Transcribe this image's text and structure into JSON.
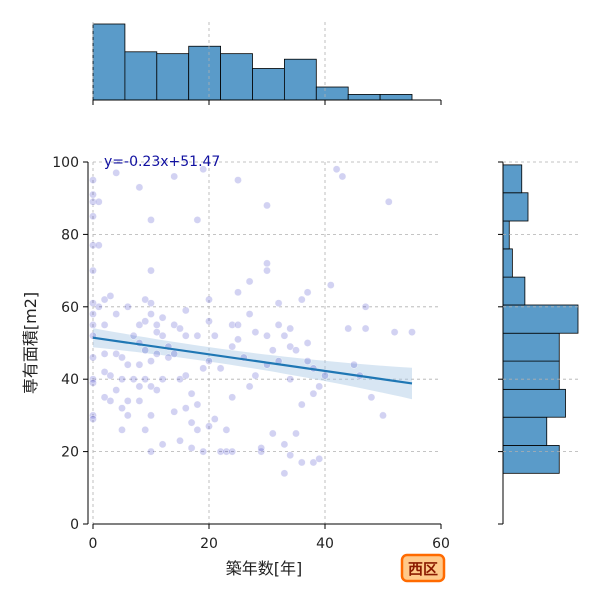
{
  "chart_data": {
    "type": "scatter",
    "xlabel": "築年数[年]",
    "ylabel": "専有面積[m2]",
    "xlim": [
      0,
      60
    ],
    "ylim": [
      0,
      100
    ],
    "xticks": [
      0,
      20,
      40,
      60
    ],
    "yticks": [
      0,
      20,
      40,
      60,
      80,
      100
    ],
    "grid": true,
    "annotation": "y=-0.23x+51.47",
    "badge": "西区",
    "regression": {
      "slope": -0.23,
      "intercept": 51.47,
      "x_range": [
        0,
        55
      ]
    },
    "points": [
      [
        0,
        95
      ],
      [
        0,
        91
      ],
      [
        0,
        89
      ],
      [
        1,
        89
      ],
      [
        0,
        85
      ],
      [
        0,
        77
      ],
      [
        1,
        77
      ],
      [
        0,
        70
      ],
      [
        0,
        61
      ],
      [
        0,
        58
      ],
      [
        0,
        55
      ],
      [
        0,
        52
      ],
      [
        0,
        46
      ],
      [
        0,
        40
      ],
      [
        0,
        39
      ],
      [
        0,
        30
      ],
      [
        0,
        29
      ],
      [
        1,
        60
      ],
      [
        2,
        62
      ],
      [
        2,
        55
      ],
      [
        2,
        47
      ],
      [
        2,
        42
      ],
      [
        2,
        35
      ],
      [
        3,
        41
      ],
      [
        3,
        34
      ],
      [
        3,
        63
      ],
      [
        4,
        97
      ],
      [
        4,
        58
      ],
      [
        4,
        47
      ],
      [
        4,
        37
      ],
      [
        5,
        46
      ],
      [
        5,
        40
      ],
      [
        5,
        32
      ],
      [
        5,
        26
      ],
      [
        6,
        60
      ],
      [
        6,
        44
      ],
      [
        6,
        34
      ],
      [
        6,
        30
      ],
      [
        7,
        52
      ],
      [
        7,
        40
      ],
      [
        8,
        93
      ],
      [
        8,
        55
      ],
      [
        8,
        50
      ],
      [
        8,
        38
      ],
      [
        8,
        34
      ],
      [
        8,
        44
      ],
      [
        9,
        62
      ],
      [
        9,
        56
      ],
      [
        9,
        48
      ],
      [
        9,
        40
      ],
      [
        9,
        26
      ],
      [
        10,
        84
      ],
      [
        10,
        70
      ],
      [
        10,
        61
      ],
      [
        10,
        58
      ],
      [
        10,
        45
      ],
      [
        10,
        38
      ],
      [
        10,
        30
      ],
      [
        10,
        20
      ],
      [
        11,
        55
      ],
      [
        11,
        53
      ],
      [
        11,
        47
      ],
      [
        11,
        37
      ],
      [
        12,
        57
      ],
      [
        12,
        52
      ],
      [
        12,
        40
      ],
      [
        12,
        22
      ],
      [
        13,
        49
      ],
      [
        13,
        46
      ],
      [
        14,
        96
      ],
      [
        14,
        55
      ],
      [
        14,
        47
      ],
      [
        14,
        31
      ],
      [
        15,
        54
      ],
      [
        15,
        40
      ],
      [
        15,
        23
      ],
      [
        16,
        59
      ],
      [
        16,
        52
      ],
      [
        16,
        41
      ],
      [
        16,
        32
      ],
      [
        17,
        28
      ],
      [
        17,
        21
      ],
      [
        17,
        36
      ],
      [
        18,
        84
      ],
      [
        18,
        52
      ],
      [
        18,
        33
      ],
      [
        18,
        26
      ],
      [
        19,
        98
      ],
      [
        19,
        43
      ],
      [
        19,
        20
      ],
      [
        20,
        62
      ],
      [
        20,
        56
      ],
      [
        20,
        45
      ],
      [
        20,
        27
      ],
      [
        21,
        52
      ],
      [
        21,
        29
      ],
      [
        22,
        20
      ],
      [
        22,
        43
      ],
      [
        23,
        26
      ],
      [
        23,
        20
      ],
      [
        24,
        55
      ],
      [
        24,
        49
      ],
      [
        24,
        35
      ],
      [
        24,
        20
      ],
      [
        25,
        95
      ],
      [
        25,
        64
      ],
      [
        25,
        55
      ],
      [
        25,
        51
      ],
      [
        26,
        46
      ],
      [
        27,
        67
      ],
      [
        27,
        58
      ],
      [
        27,
        38
      ],
      [
        28,
        53
      ],
      [
        28,
        41
      ],
      [
        29,
        20
      ],
      [
        29,
        21
      ],
      [
        30,
        88
      ],
      [
        30,
        72
      ],
      [
        30,
        70
      ],
      [
        30,
        52
      ],
      [
        30,
        44
      ],
      [
        31,
        48
      ],
      [
        31,
        25
      ],
      [
        32,
        61
      ],
      [
        32,
        55
      ],
      [
        32,
        45
      ],
      [
        33,
        52
      ],
      [
        33,
        22
      ],
      [
        33,
        14
      ],
      [
        34,
        54
      ],
      [
        34,
        49
      ],
      [
        34,
        40
      ],
      [
        34,
        19
      ],
      [
        35,
        48
      ],
      [
        35,
        25
      ],
      [
        36,
        62
      ],
      [
        36,
        33
      ],
      [
        36,
        17
      ],
      [
        37,
        64
      ],
      [
        37,
        50
      ],
      [
        37,
        45
      ],
      [
        38,
        43
      ],
      [
        38,
        17
      ],
      [
        38,
        36
      ],
      [
        39,
        18
      ],
      [
        39,
        38
      ],
      [
        40,
        41
      ],
      [
        41,
        66
      ],
      [
        42,
        98
      ],
      [
        43,
        96
      ],
      [
        44,
        54
      ],
      [
        45,
        44
      ],
      [
        46,
        41
      ],
      [
        47,
        60
      ],
      [
        47,
        54
      ],
      [
        48,
        35
      ],
      [
        50,
        30
      ],
      [
        51,
        89
      ],
      [
        52,
        53
      ],
      [
        55,
        53
      ]
    ],
    "x_hist": {
      "bin_edges": [
        0,
        5.5,
        11,
        16.5,
        22,
        27.5,
        33,
        38.5,
        44,
        49.5,
        55
      ],
      "counts": [
        41,
        26,
        25,
        29,
        25,
        17,
        22,
        7,
        3,
        3
      ]
    },
    "y_hist": {
      "bin_edges": [
        14,
        21.7,
        29.5,
        37.2,
        45,
        52.7,
        60.5,
        68.2,
        76,
        83.7,
        91.5,
        99.2
      ],
      "counts": [
        18,
        14,
        20,
        18,
        18,
        24,
        7,
        3,
        2,
        8,
        6
      ]
    },
    "colors": {
      "point": "#2020c0",
      "regression_line": "#1f77b4",
      "confidence_band": "#a8c8e4",
      "histogram": "#5a9bc9",
      "badge_fill": "#ffc98a",
      "badge_border": "#ff6a00"
    }
  }
}
